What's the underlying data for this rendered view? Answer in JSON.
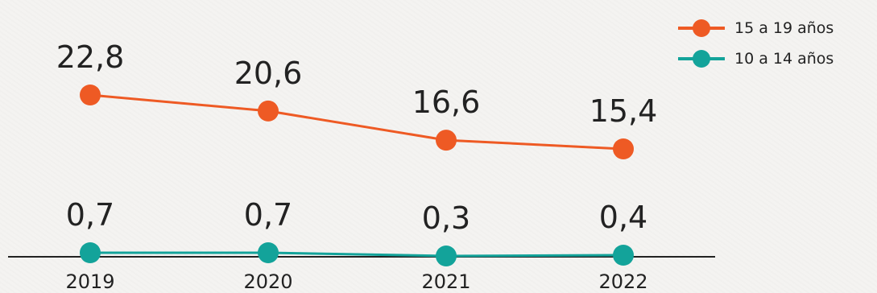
{
  "chart_data": {
    "type": "line",
    "categories": [
      "2019",
      "2020",
      "2021",
      "2022"
    ],
    "series": [
      {
        "name": "15 a 19 años",
        "values": [
          22.8,
          20.6,
          16.6,
          15.4
        ],
        "labels": [
          "22,8",
          "20,6",
          "16,6",
          "15,4"
        ],
        "color": "#ee5a24"
      },
      {
        "name": "10 a 14 años",
        "values": [
          0.7,
          0.7,
          0.3,
          0.4
        ],
        "labels": [
          "0,7",
          "0,7",
          "0,3",
          "0,4"
        ],
        "color": "#13a39a"
      }
    ],
    "legend_position": "top-right",
    "grid": false,
    "axis_color": "#222222"
  }
}
